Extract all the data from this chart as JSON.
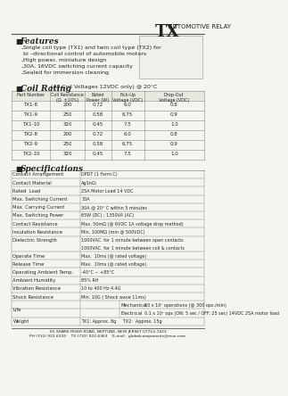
{
  "title_tx": "TX",
  "title_sub": "AUTOMOTIVE RELAY",
  "features_title": "Features",
  "features": [
    "Single coil type (TX1) and twin coil type (TX2) for",
    "bi-directional control of automobile motors",
    "High power, miniature design",
    "30A, 16VDC switching current capacity",
    "Sealed for immersion cleaning"
  ],
  "coil_rating_title": "Coil Rating",
  "coil_rating_sub": "(All Coil Voltages 12VDC only) @ 20°C",
  "coil_headers": [
    "Part Number",
    "Coil Resistance\n(Ω  ±10%)",
    "Rated\nPower (W)",
    "Pick-Up\nVoltage (VDC)",
    "Drop-Out\nVoltage (VDC)"
  ],
  "coil_data": [
    [
      "TX1-8",
      "200",
      "0.72",
      "6.0",
      "0.8"
    ],
    [
      "TX1-9",
      "250",
      "0.58",
      "6.75",
      "0.9"
    ],
    [
      "TX1-10",
      "320",
      "0.45",
      "7.5",
      "1.0"
    ],
    [
      "TX2-8",
      "200",
      "0.72",
      "6.0",
      "0.8"
    ],
    [
      "TX2-9",
      "250",
      "0.58",
      "6.75",
      "0.9"
    ],
    [
      "TX2-10",
      "320",
      "0.45",
      "7.5",
      "1.0"
    ]
  ],
  "specs_title": "Specifications",
  "specs": [
    [
      "Contact Arrangement",
      "DPDT (1 Form C)"
    ],
    [
      "Contact Material",
      "AgSnO₂"
    ],
    [
      "Rated  Load",
      "25A Motor Load 14 VDC"
    ],
    [
      "Max. Switching Current",
      "30A"
    ],
    [
      "Max. Carrying Current",
      "30A @ 20° C within 5 minutes"
    ],
    [
      "Max. Switching Power",
      "65W (DC) ; 1350VA (AC)"
    ],
    [
      "Contact Resistance",
      "Max. 50mΩ (@ 6VDC 1A voltage drop method)"
    ],
    [
      "Insulation Resistance",
      "Min. 100MΩ (min @ 500VDC)"
    ],
    [
      "Dielectric Strength",
      "1000VAC  for 1 minute between open contacts\n1000VAC  for 1 minute between coil & contacts"
    ],
    [
      "Operate Time",
      "Max.  10ms (@ rated voltage)"
    ],
    [
      "Release Time",
      "Max.  10ms (@ rated voltage)"
    ],
    [
      "Operating Ambient Temp.",
      "-40°C ~ +85°C"
    ],
    [
      "Ambient Humidity",
      "85% RH"
    ],
    [
      "Vibration Resistance",
      "10 to 400 Hz 4.4G"
    ],
    [
      "Shock Resistance",
      "Min. 10G ( Shock wave 11ms)"
    ],
    [
      "Life",
      "Mechanical",
      "10 x 10⁷ operations (@ 300 ops./min)"
    ],
    [
      "",
      "Electrical",
      "0.1 x 10⁷ ops (ON: 5 sec / OFF: 25 sec) 14VDC 25A motor load"
    ],
    [
      "Weight",
      "TX1: Approx. 8g     TX2:  Approx. 15g"
    ]
  ],
  "footer": "65 SHARK RIVER ROAD, NEPTUNE, NEW JERSEY 07753-7423\nPH (732) 922-6333    TX (732) 922-6363    E-mail:  globalcomponents@msn.com",
  "bg_color": "#f5f5f0",
  "text_color": "#222222",
  "table_line_color": "#888888",
  "header_bg": "#e8e8e0"
}
